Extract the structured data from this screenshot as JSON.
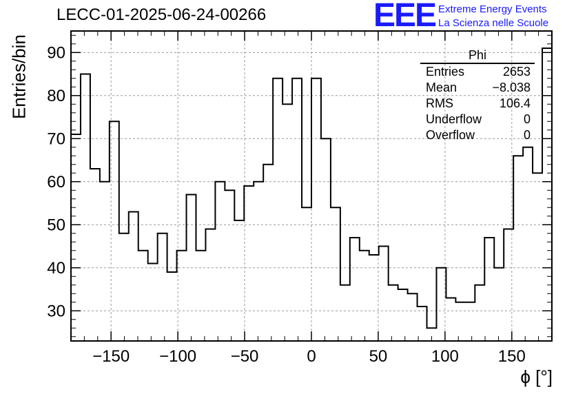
{
  "header": {
    "title": "LECC-01-2025-06-24-00266",
    "logo": "EEE",
    "logo_line1": "Extreme Energy Events",
    "logo_line2": "La Scienza nelle Scuole"
  },
  "stats": {
    "name": "Phi",
    "rows": [
      {
        "label": "Entries",
        "value": "2653"
      },
      {
        "label": "Mean",
        "value": "−8.038"
      },
      {
        "label": "RMS",
        "value": "106.4"
      },
      {
        "label": "Underflow",
        "value": "0"
      },
      {
        "label": "Overflow",
        "value": "0"
      }
    ]
  },
  "chart_data": {
    "type": "histogram",
    "title": "LECC-01-2025-06-24-00266",
    "xlabel": "ϕ [°]",
    "ylabel": "Entries/bin",
    "xlim": [
      -180,
      180
    ],
    "ylim": [
      23,
      95
    ],
    "xticks": [
      -150,
      -100,
      -50,
      0,
      50,
      100,
      150
    ],
    "xtick_labels": [
      "−150",
      "−100",
      "−50",
      "0",
      "50",
      "100",
      "150"
    ],
    "yticks": [
      30,
      40,
      50,
      60,
      70,
      80,
      90
    ],
    "grid": true,
    "bin_edges_start": -180,
    "bin_width": 7.2,
    "values": [
      71,
      85,
      63,
      60,
      74,
      48,
      53,
      44,
      41,
      48,
      39,
      44,
      57,
      44,
      49,
      60,
      58,
      51,
      59,
      60,
      64,
      84,
      78,
      84,
      54,
      84,
      70,
      54,
      36,
      47,
      44,
      43,
      45,
      36,
      35,
      34,
      31,
      26,
      40,
      33,
      32,
      32,
      36,
      47,
      40,
      49,
      66,
      68,
      62,
      91
    ]
  }
}
